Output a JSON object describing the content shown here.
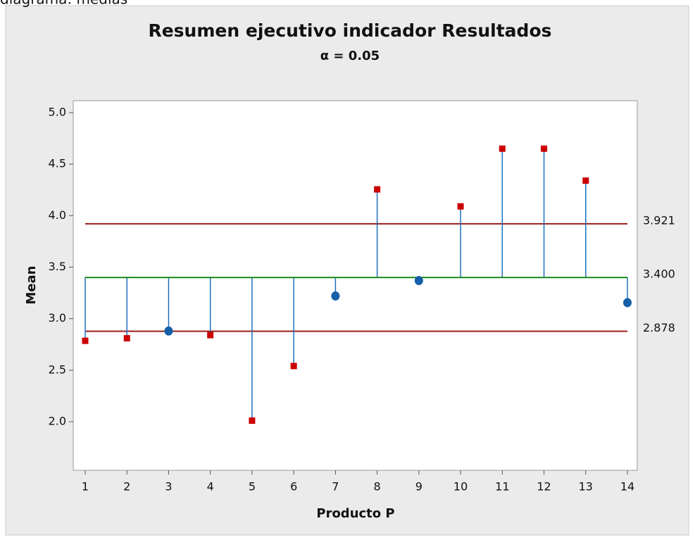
{
  "caption": "diagrama: medias",
  "chart_data": {
    "type": "anom",
    "title": "Resumen ejecutivo indicador Resultados",
    "subtitle": "α = 0.05",
    "x_label": "Producto P",
    "y_label": "Mean",
    "x": [
      1,
      2,
      3,
      4,
      5,
      6,
      7,
      8,
      9,
      10,
      11,
      12,
      13,
      14
    ],
    "values": [
      2.785,
      2.81,
      2.88,
      2.84,
      2.01,
      2.54,
      3.22,
      4.255,
      3.37,
      4.09,
      4.65,
      4.65,
      4.34,
      3.155
    ],
    "upper_limit": 3.921,
    "center": {
      "value": 3.4,
      "label": "3.400"
    },
    "lower_limit": 2.878,
    "xlim": [
      0.713,
      14.236
    ],
    "ylim": [
      1.528,
      5.116
    ],
    "xticks": [
      1,
      2,
      3,
      4,
      5,
      6,
      7,
      8,
      9,
      10,
      11,
      12,
      13,
      14
    ],
    "yticks": [
      {
        "value": 2.0,
        "label": "2.0"
      },
      2.5,
      {
        "value": 3.0,
        "label": "3.0"
      },
      3.5,
      {
        "value": 4.0,
        "label": "4.0"
      },
      4.5,
      {
        "value": 5.0,
        "label": "5.0"
      }
    ],
    "limit_color": "#9b1c1c",
    "center_color": "#1d8a1d",
    "stem_color": "#1f6fbf",
    "in_color": "#1560a8",
    "out_color": "#cc0000"
  }
}
